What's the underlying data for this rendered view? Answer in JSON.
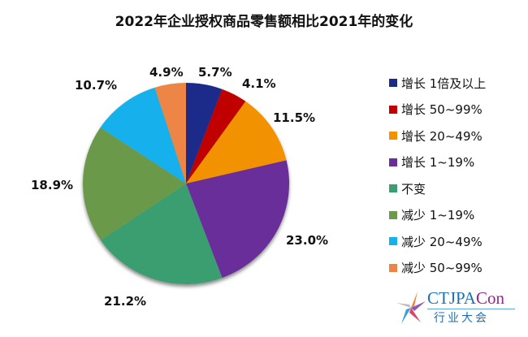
{
  "title": "2022年企业授权商品零售额相比2021年的变化",
  "legend": [
    {
      "label": "增长 1倍及以上",
      "color": "#1a2a8a"
    },
    {
      "label": "增长 50~99%",
      "color": "#c00000"
    },
    {
      "label": "增长 20~49%",
      "color": "#f39200"
    },
    {
      "label": "增长 1~19%",
      "color": "#6a2e9a"
    },
    {
      "label": "不变",
      "color": "#3a9e70"
    },
    {
      "label": "减少 1~19%",
      "color": "#6a9a4a"
    },
    {
      "label": "减少 20~49%",
      "color": "#16b0ec"
    },
    {
      "label": "减少 50~99%",
      "color": "#ec8544"
    }
  ],
  "labels": [
    "5.7%",
    "4.1%",
    "11.5%",
    "23.0%",
    "21.2%",
    "18.9%",
    "10.7%",
    "4.9%"
  ],
  "logo": {
    "main": "CTJPA",
    "accent": "Con",
    "sub": "行业大会"
  },
  "chart_data": {
    "type": "pie",
    "title": "2022年企业授权商品零售额相比2021年的变化",
    "categories": [
      "增长 1倍及以上",
      "增长 50~99%",
      "增长 20~49%",
      "增长 1~19%",
      "不变",
      "减少 1~19%",
      "减少 20~49%",
      "减少 50~99%"
    ],
    "values": [
      5.7,
      4.1,
      11.5,
      23.0,
      21.2,
      18.9,
      10.7,
      4.9
    ],
    "unit": "%",
    "colors": [
      "#1a2a8a",
      "#c00000",
      "#f39200",
      "#6a2e9a",
      "#3a9e70",
      "#6a9a4a",
      "#16b0ec",
      "#ec8544"
    ],
    "start_angle": "12 o'clock, clockwise",
    "legend_position": "right"
  }
}
